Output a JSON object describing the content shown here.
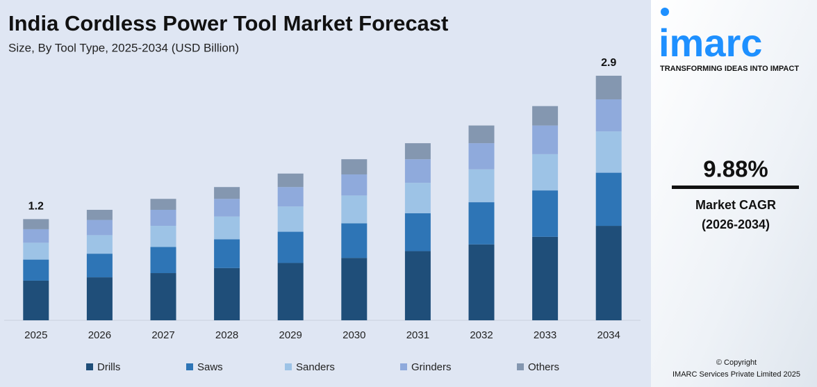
{
  "chart_data": {
    "type": "stacked-bar",
    "title": "India Cordless Power Tool Market Forecast",
    "subtitle": "Size, By Tool Type, 2025-2034 (USD Billion)",
    "categories": [
      "2025",
      "2026",
      "2027",
      "2028",
      "2029",
      "2030",
      "2031",
      "2032",
      "2033",
      "2034"
    ],
    "series": [
      {
        "name": "Drills",
        "color": "#1f4e79",
        "values": [
          0.47,
          0.51,
          0.56,
          0.62,
          0.68,
          0.74,
          0.82,
          0.9,
          0.99,
          1.12
        ]
      },
      {
        "name": "Saws",
        "color": "#2e75b6",
        "values": [
          0.25,
          0.28,
          0.31,
          0.34,
          0.37,
          0.41,
          0.45,
          0.5,
          0.55,
          0.63
        ]
      },
      {
        "name": "Sanders",
        "color": "#9dc3e6",
        "values": [
          0.2,
          0.22,
          0.25,
          0.27,
          0.3,
          0.33,
          0.36,
          0.39,
          0.43,
          0.49
        ]
      },
      {
        "name": "Grinders",
        "color": "#8faadc",
        "values": [
          0.16,
          0.18,
          0.19,
          0.21,
          0.23,
          0.25,
          0.28,
          0.31,
          0.34,
          0.38
        ]
      },
      {
        "name": "Others",
        "color": "#8497b0",
        "values": [
          0.12,
          0.12,
          0.13,
          0.14,
          0.16,
          0.18,
          0.19,
          0.21,
          0.23,
          0.28
        ]
      }
    ],
    "totals": [
      1.2,
      null,
      null,
      null,
      null,
      null,
      null,
      null,
      null,
      2.9
    ],
    "legend": "bottom"
  },
  "sidebar": {
    "logo": "imarc",
    "tagline": "TRANSFORMING IDEAS INTO IMPACT",
    "cagr": "9.88%",
    "cagr_label": "Market CAGR",
    "cagr_period": "(2026-2034)",
    "copyright": "© Copyright",
    "company": "IMARC Services Private Limited 2025"
  }
}
